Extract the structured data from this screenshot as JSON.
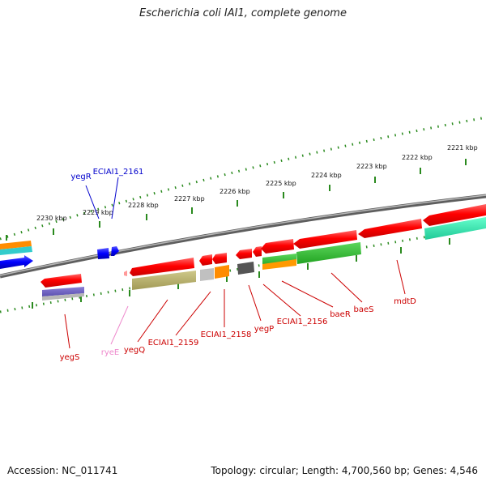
{
  "title": "Escherichia coli IAI1, complete genome",
  "footer": {
    "accession": "Accession: NC_011741",
    "summary": "Topology: circular; Length: 4,700,560 bp; Genes: 4,546"
  },
  "scale_labels": [
    "2221 kbp",
    "2222 kbp",
    "2223 kbp",
    "2224 kbp",
    "2225 kbp",
    "2226 kbp",
    "2227 kbp",
    "2228 kbp",
    "2229 kbp",
    "2230 kbp"
  ],
  "genes_top": [
    {
      "name": "yegR",
      "color": "#0000cc"
    },
    {
      "name": "ECIAI1_2161",
      "color": "#0000cc"
    }
  ],
  "genes_bottom": [
    {
      "name": "yegS",
      "color": "#cc0000"
    },
    {
      "name": "ryeE",
      "color": "#ee88cc"
    },
    {
      "name": "yegQ",
      "color": "#cc0000"
    },
    {
      "name": "ECIAI1_2159",
      "color": "#cc0000"
    },
    {
      "name": "ECIAI1_2158",
      "color": "#cc0000"
    },
    {
      "name": "yegP",
      "color": "#cc0000"
    },
    {
      "name": "ECIAI1_2156",
      "color": "#cc0000"
    },
    {
      "name": "baeR",
      "color": "#cc0000"
    },
    {
      "name": "baeS",
      "color": "#cc0000"
    },
    {
      "name": "mdtD",
      "color": "#cc0000"
    }
  ],
  "colors": {
    "cds": "#ff0000",
    "cds_minus_strand": "#0000ff",
    "backbone": "#777777",
    "ticks": "#2a8a1e"
  }
}
